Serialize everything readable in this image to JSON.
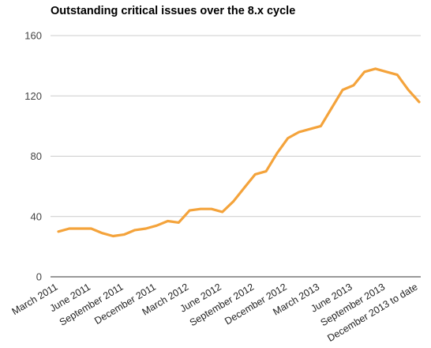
{
  "chart_data": {
    "type": "line",
    "title": "Outstanding critical issues over the 8.x cycle",
    "xlabel": "",
    "ylabel": "",
    "ylim": [
      0,
      160
    ],
    "yticks": [
      0,
      40,
      80,
      120,
      160
    ],
    "grid": true,
    "legend": "none",
    "x_tick_labels": [
      "March 2011",
      "June 2011",
      "September 2011",
      "December 2011",
      "March 2012",
      "June 2012",
      "September 2012",
      "December 2012",
      "March 2013",
      "June 2013",
      "September 2013",
      "December 2013 to date"
    ],
    "series": [
      {
        "color": "#f4a33b",
        "values": [
          30,
          32,
          32,
          32,
          29,
          27,
          28,
          31,
          32,
          34,
          37,
          36,
          44,
          45,
          45,
          43,
          50,
          59,
          68,
          70,
          82,
          92,
          96,
          98,
          100,
          112,
          124,
          127,
          136,
          138,
          136,
          134,
          124,
          116
        ]
      }
    ]
  }
}
